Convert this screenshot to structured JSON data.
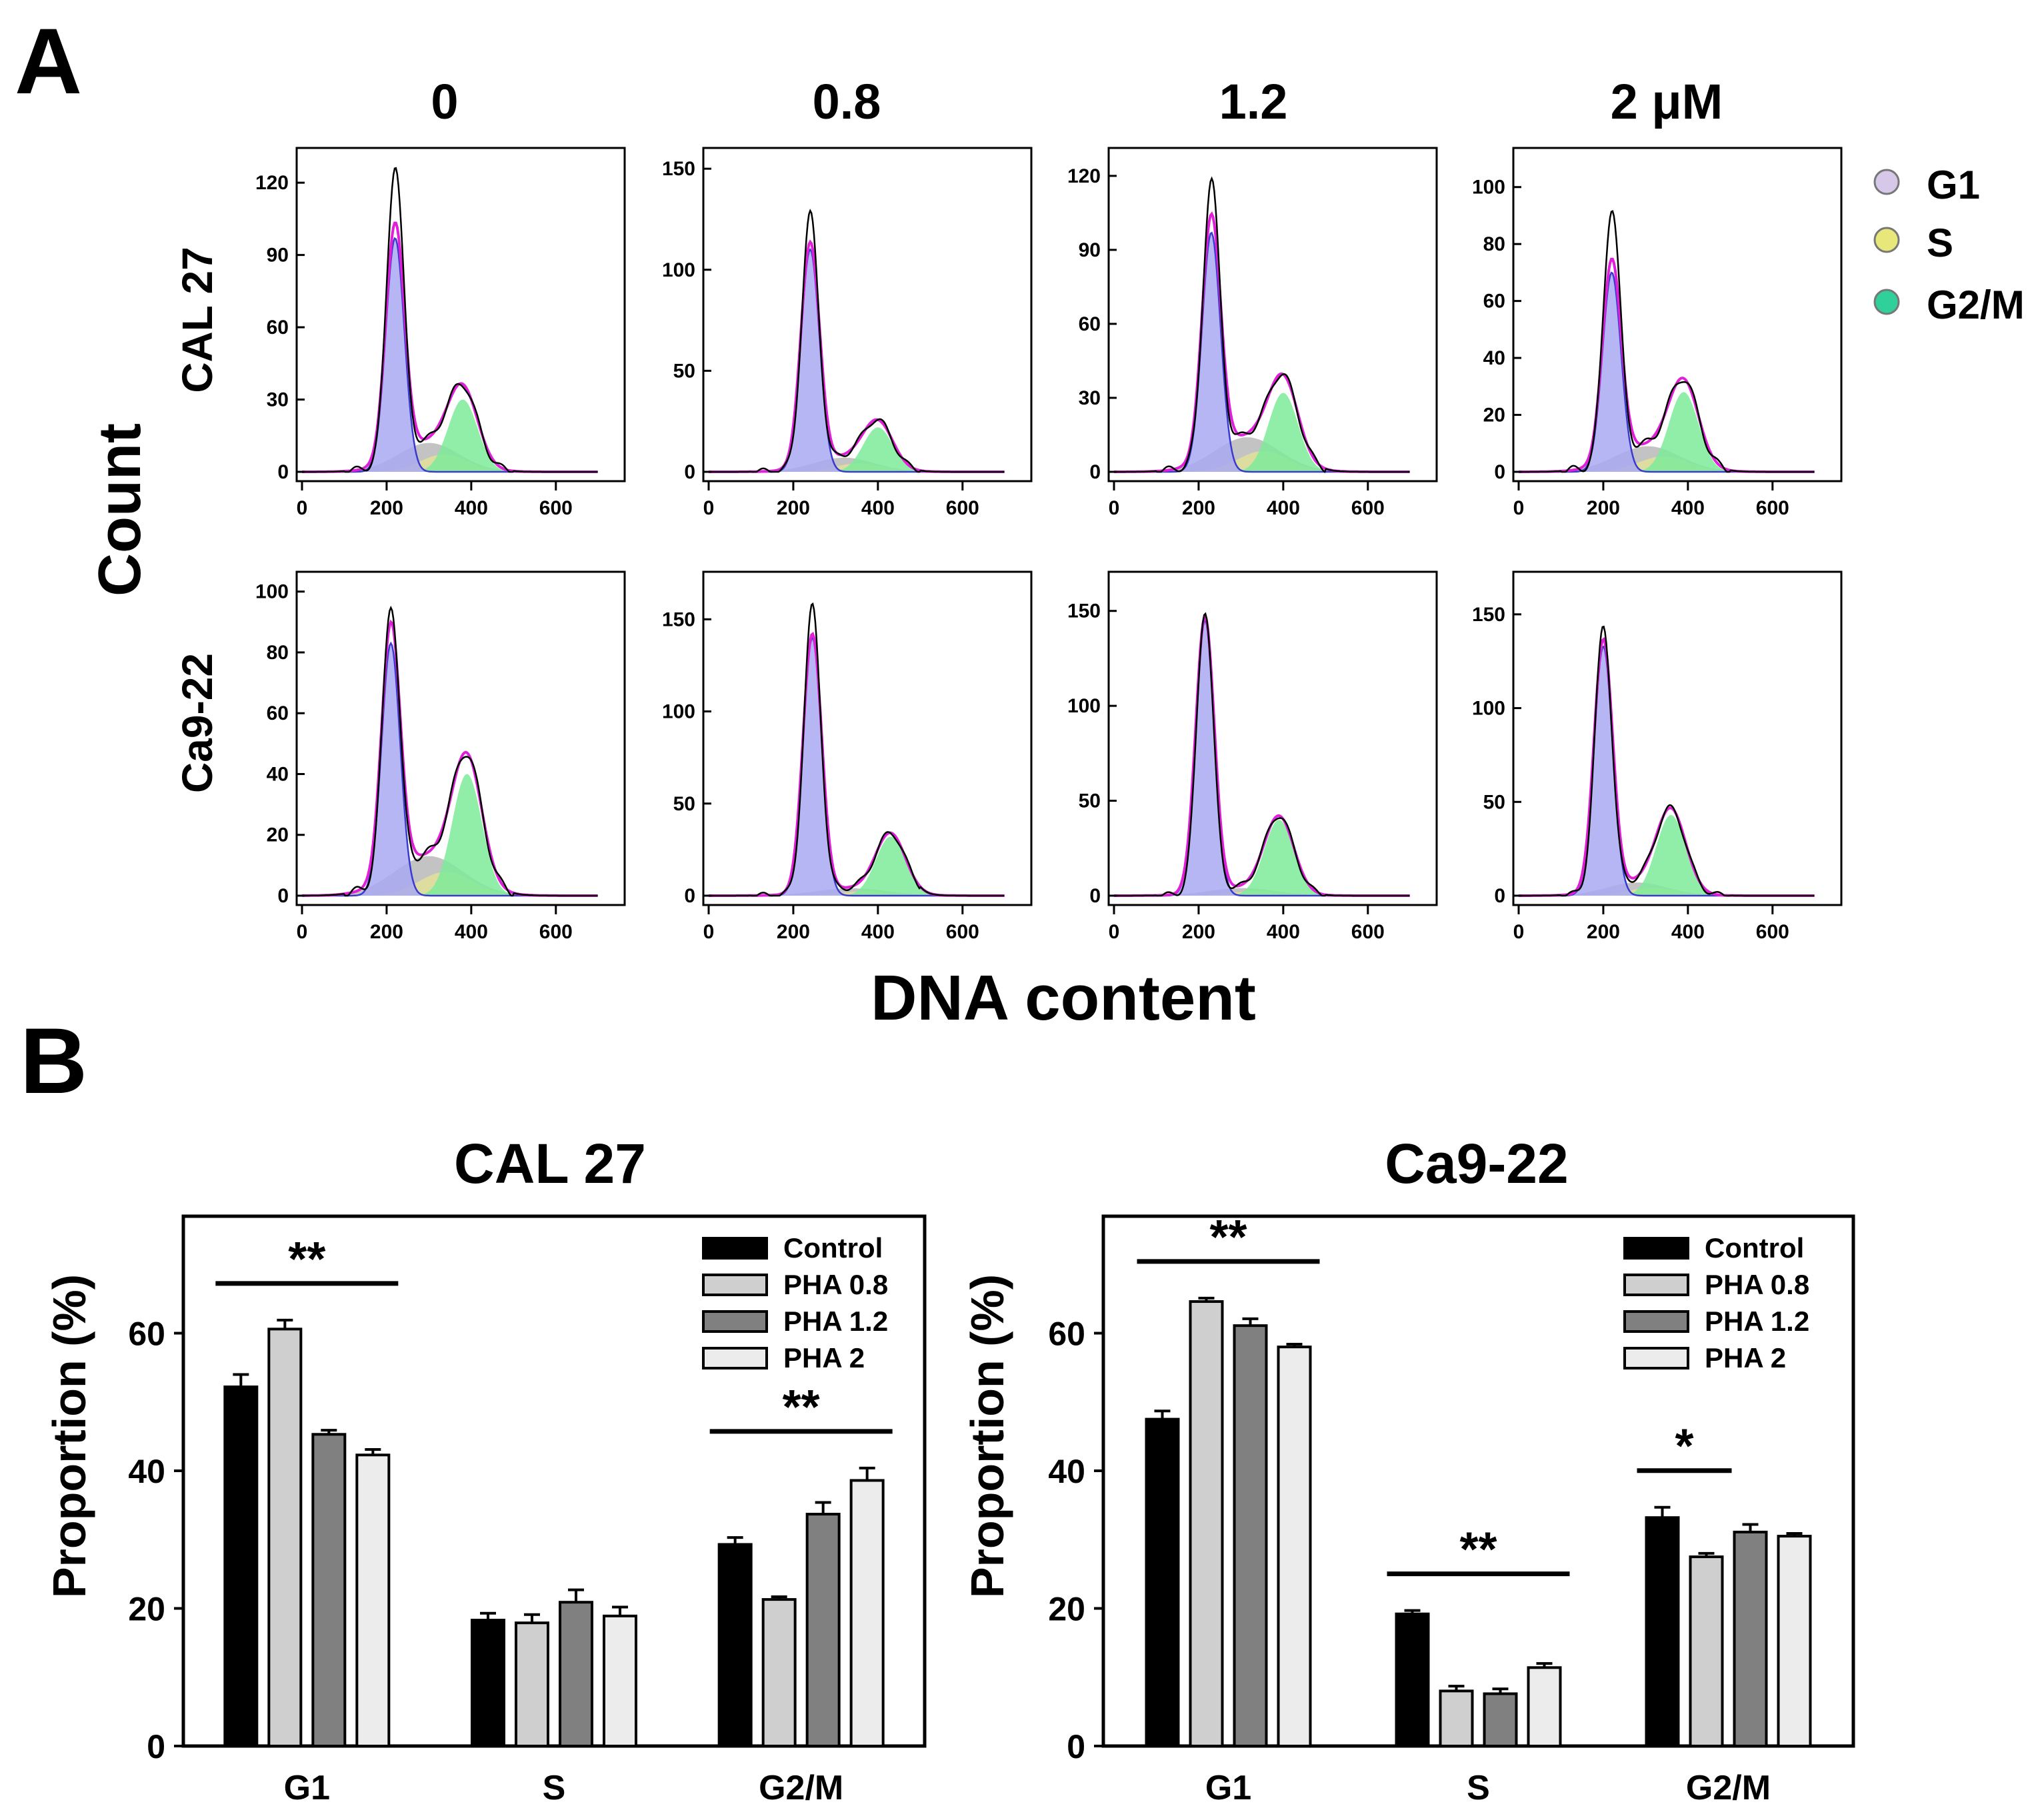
{
  "figure": {
    "panel_a_letter": "A",
    "panel_b_letter": "B",
    "histogram_y_title": "Count",
    "histogram_x_title": "DNA content",
    "concentrations": [
      "0",
      "0.8",
      "1.2",
      "2 μM"
    ],
    "cell_lines": [
      "CAL 27",
      "Ca9-22"
    ],
    "phase_legend": [
      "G1",
      "S",
      "G2/M"
    ],
    "colors": {
      "g1_fill": "#a9a9f2",
      "g1_line": "#3a3ad0",
      "s_fill": "#e2e29a",
      "g2m_fill": "#7eeb9a",
      "debris_fill": "#b8b8b8",
      "fit_line": "#e020d8",
      "data_line": "#000000",
      "legend_g1": "#d7c7e8",
      "legend_s": "#e7e77a",
      "legend_g2m": "#2fd09a",
      "control": "#000000",
      "pha08": "#cfcfcf",
      "pha12": "#808080",
      "pha2": "#ececec"
    }
  },
  "chart_data": [
    {
      "type": "area",
      "title": "CAL 27 · 0",
      "xlim": [
        0,
        750
      ],
      "ylim": [
        0,
        130
      ],
      "xticks": [
        "0",
        "200",
        "400",
        "600"
      ],
      "yticks": [
        "0",
        "30",
        "60",
        "90",
        "120"
      ],
      "g1_peak": {
        "x": 220,
        "y": 97
      },
      "g2m_peak": {
        "x": 380,
        "y": 30
      },
      "s_peak": {
        "x": 280,
        "y": 12
      },
      "data_max": 121
    },
    {
      "type": "area",
      "title": "CAL 27 · 0.8",
      "xlim": [
        0,
        750
      ],
      "ylim": [
        0,
        155
      ],
      "xticks": [
        "0",
        "200",
        "400",
        "600"
      ],
      "yticks": [
        "0",
        "50",
        "100",
        "150"
      ],
      "g1_peak": {
        "x": 240,
        "y": 110
      },
      "g2m_peak": {
        "x": 400,
        "y": 22
      },
      "s_peak": {
        "x": 300,
        "y": 7
      },
      "data_max": 124
    },
    {
      "type": "area",
      "title": "CAL 27 · 1.2",
      "xlim": [
        0,
        750
      ],
      "ylim": [
        0,
        127
      ],
      "xticks": [
        "0",
        "200",
        "400",
        "600"
      ],
      "yticks": [
        "0",
        "30",
        "60",
        "90",
        "120"
      ],
      "g1_peak": {
        "x": 230,
        "y": 97
      },
      "g2m_peak": {
        "x": 400,
        "y": 32
      },
      "s_peak": {
        "x": 290,
        "y": 14
      },
      "data_max": 111
    },
    {
      "type": "area",
      "title": "CAL 27 · 2 μM",
      "xlim": [
        0,
        750
      ],
      "ylim": [
        0,
        110
      ],
      "xticks": [
        "0",
        "200",
        "400",
        "600"
      ],
      "yticks": [
        "0",
        "20",
        "40",
        "60",
        "80",
        "100"
      ],
      "g1_peak": {
        "x": 220,
        "y": 70
      },
      "g2m_peak": {
        "x": 390,
        "y": 28
      },
      "s_peak": {
        "x": 280,
        "y": 9
      },
      "data_max": 88
    },
    {
      "type": "area",
      "title": "Ca9-22 · 0",
      "xlim": [
        0,
        750
      ],
      "ylim": [
        0,
        103
      ],
      "xticks": [
        "0",
        "200",
        "400",
        "600"
      ],
      "yticks": [
        "0",
        "20",
        "40",
        "60",
        "80",
        "100"
      ],
      "g1_peak": {
        "x": 210,
        "y": 83
      },
      "g2m_peak": {
        "x": 390,
        "y": 40
      },
      "s_peak": {
        "x": 300,
        "y": 13
      },
      "data_max": 89
    },
    {
      "type": "area",
      "title": "Ca9-22 · 0.8",
      "xlim": [
        0,
        750
      ],
      "ylim": [
        0,
        170
      ],
      "xticks": [
        "0",
        "200",
        "400",
        "600"
      ],
      "yticks": [
        "0",
        "50",
        "100",
        "150"
      ],
      "g1_peak": {
        "x": 245,
        "y": 140
      },
      "g2m_peak": {
        "x": 430,
        "y": 32
      },
      "s_peak": {
        "x": 330,
        "y": 4
      },
      "data_max": 155
    },
    {
      "type": "area",
      "title": "Ca9-22 · 1.2",
      "xlim": [
        0,
        750
      ],
      "ylim": [
        0,
        165
      ],
      "xticks": [
        "0",
        "200",
        "400",
        "600"
      ],
      "yticks": [
        "0",
        "50",
        "100",
        "150"
      ],
      "g1_peak": {
        "x": 215,
        "y": 145
      },
      "g2m_peak": {
        "x": 390,
        "y": 40
      },
      "s_peak": {
        "x": 300,
        "y": 4
      },
      "data_max": 148
    },
    {
      "type": "area",
      "title": "Ca9-22 · 2 μM",
      "xlim": [
        0,
        750
      ],
      "ylim": [
        0,
        167
      ],
      "xticks": [
        "0",
        "200",
        "400",
        "600"
      ],
      "yticks": [
        "0",
        "50",
        "100",
        "150"
      ],
      "g1_peak": {
        "x": 200,
        "y": 133
      },
      "g2m_peak": {
        "x": 360,
        "y": 43
      },
      "s_peak": {
        "x": 270,
        "y": 7
      },
      "data_max": 140
    },
    {
      "type": "bar",
      "title": "CAL 27",
      "ylabel": "Proportion (%)",
      "ylim": [
        0,
        77
      ],
      "yticks": [
        "0",
        "20",
        "40",
        "60"
      ],
      "categories": [
        "G1",
        "S",
        "G2/M"
      ],
      "series": [
        {
          "name": "Control",
          "values": [
            52.2,
            18.3,
            29.3
          ],
          "errors": [
            1.8,
            1.0,
            1.0
          ]
        },
        {
          "name": "PHA 0.8",
          "values": [
            60.6,
            17.9,
            21.3
          ],
          "errors": [
            1.3,
            1.2,
            0.4
          ]
        },
        {
          "name": "PHA 1.2",
          "values": [
            45.3,
            20.9,
            33.7
          ],
          "errors": [
            0.6,
            1.8,
            1.7
          ]
        },
        {
          "name": "PHA 2",
          "values": [
            42.3,
            18.9,
            38.6
          ],
          "errors": [
            0.8,
            1.3,
            1.8
          ]
        }
      ],
      "significance": [
        {
          "category": "G1",
          "label": "**"
        },
        {
          "category": "G2/M",
          "label": "**"
        }
      ]
    },
    {
      "type": "bar",
      "title": "Ca9-22",
      "ylabel": "Proportion (%)",
      "ylim": [
        0,
        77
      ],
      "yticks": [
        "0",
        "20",
        "40",
        "60"
      ],
      "categories": [
        "G1",
        "S",
        "G2/M"
      ],
      "series": [
        {
          "name": "Control",
          "values": [
            47.5,
            19.2,
            33.2
          ],
          "errors": [
            1.2,
            0.5,
            1.5
          ]
        },
        {
          "name": "PHA 0.8",
          "values": [
            64.6,
            8.0,
            27.5
          ],
          "errors": [
            0.5,
            0.7,
            0.5
          ]
        },
        {
          "name": "PHA 1.2",
          "values": [
            61.1,
            7.6,
            31.1
          ],
          "errors": [
            1.0,
            0.7,
            1.1
          ]
        },
        {
          "name": "PHA 2",
          "values": [
            58.0,
            11.4,
            30.5
          ],
          "errors": [
            0.4,
            0.6,
            0.4
          ]
        }
      ],
      "significance": [
        {
          "category": "G1",
          "label": "**"
        },
        {
          "category": "S",
          "label": "**"
        },
        {
          "category": "G2/M",
          "label": "*"
        }
      ]
    }
  ]
}
